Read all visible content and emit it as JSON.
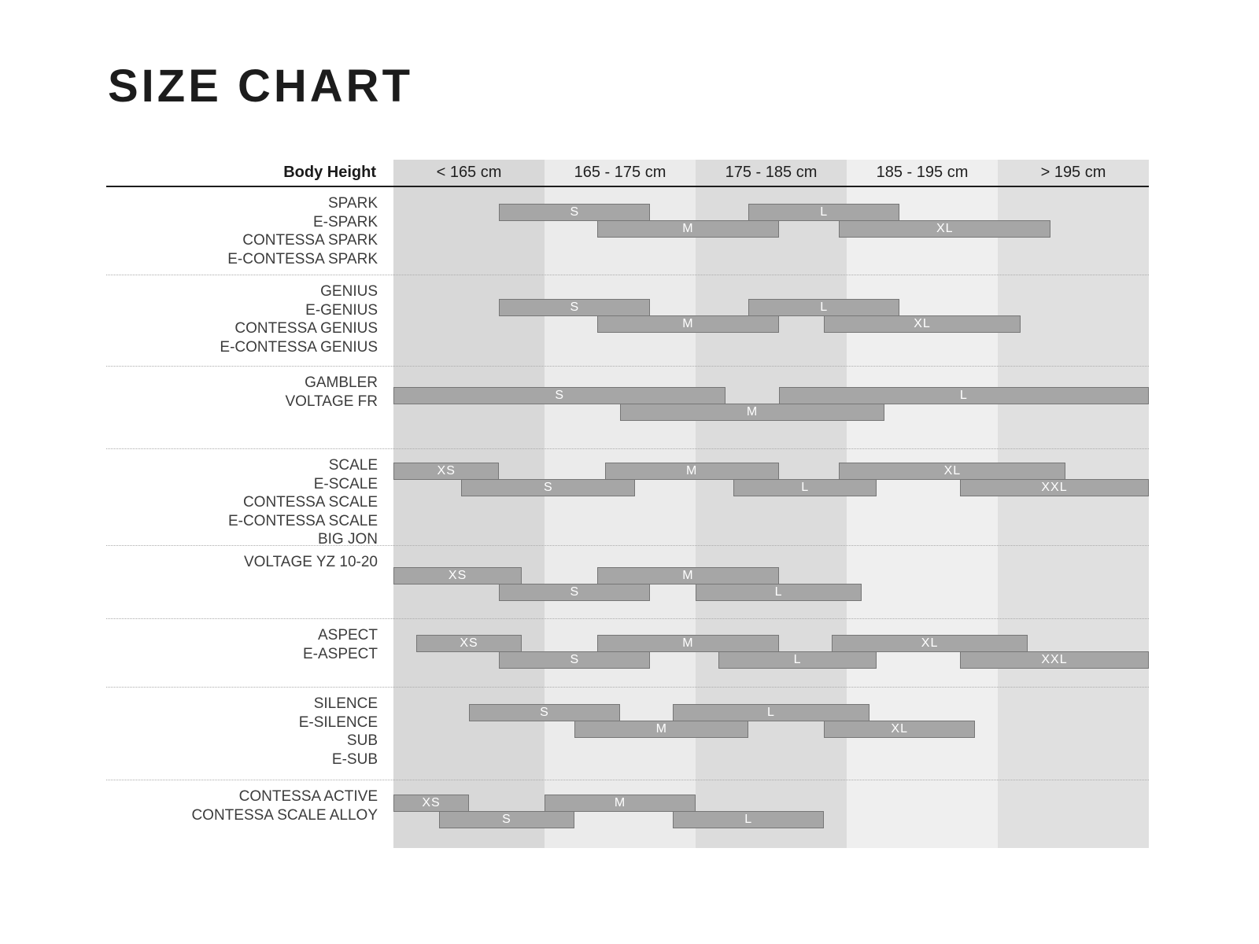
{
  "title": "SIZE CHART",
  "axis": {
    "label": "Body Height",
    "columns": [
      "< 165 cm",
      "165 - 175 cm",
      "175 - 185 cm",
      "185 - 195 cm",
      "> 195 cm"
    ]
  },
  "colors": {
    "page_bg": "#ffffff",
    "title_text": "#1c1c1c",
    "header_text": "#1f1f1f",
    "model_text": "#3c3c3c",
    "header_rule": "#1d1d1d",
    "separator": "#ababab",
    "column_fills": [
      "#d8d8d8",
      "#ebebeb",
      "#dcdcdc",
      "#efefef",
      "#e0e0e0"
    ],
    "bar_fill": "#a6a6a6",
    "bar_border": "#767676",
    "bar_text": "#ffffff"
  },
  "chart_data": {
    "type": "bar",
    "variant": "horizontal-size-range",
    "title": "SIZE CHART",
    "xlabel": "Body Height",
    "x_tick_labels": [
      "< 165 cm",
      "165 - 175 cm",
      "175 - 185 cm",
      "185 - 195 cm",
      "> 195 cm"
    ],
    "x_range_cm": [
      155,
      205
    ],
    "grid": "alternating-column-bands",
    "legend_position": "none",
    "groups": [
      {
        "models": [
          "SPARK",
          "E-SPARK",
          "CONTESSA SPARK",
          "E-CONTESSA SPARK"
        ],
        "sizes": [
          {
            "label": "S",
            "from_cm": 162,
            "to_cm": 172,
            "row": 0
          },
          {
            "label": "M",
            "from_cm": 168.5,
            "to_cm": 180.5,
            "row": 1
          },
          {
            "label": "L",
            "from_cm": 178.5,
            "to_cm": 188.5,
            "row": 0
          },
          {
            "label": "XL",
            "from_cm": 184.5,
            "to_cm": 198.5,
            "row": 1
          }
        ]
      },
      {
        "models": [
          "GENIUS",
          "E-GENIUS",
          "CONTESSA GENIUS",
          "E-CONTESSA GENIUS"
        ],
        "sizes": [
          {
            "label": "S",
            "from_cm": 162,
            "to_cm": 172,
            "row": 0
          },
          {
            "label": "M",
            "from_cm": 168.5,
            "to_cm": 180.5,
            "row": 1
          },
          {
            "label": "L",
            "from_cm": 178.5,
            "to_cm": 188.5,
            "row": 0
          },
          {
            "label": "XL",
            "from_cm": 183.5,
            "to_cm": 196.5,
            "row": 1
          }
        ]
      },
      {
        "models": [
          "GAMBLER",
          "VOLTAGE FR"
        ],
        "sizes": [
          {
            "label": "S",
            "from_cm": 155,
            "to_cm": 177,
            "row": 0
          },
          {
            "label": "M",
            "from_cm": 170,
            "to_cm": 187.5,
            "row": 1
          },
          {
            "label": "L",
            "from_cm": 180.5,
            "to_cm": 205,
            "row": 0
          }
        ]
      },
      {
        "models": [
          "SCALE",
          "E-SCALE",
          "CONTESSA SCALE",
          "E-CONTESSA SCALE",
          "BIG JON"
        ],
        "sizes": [
          {
            "label": "XS",
            "from_cm": 155,
            "to_cm": 162,
            "row": 0
          },
          {
            "label": "S",
            "from_cm": 159.5,
            "to_cm": 171,
            "row": 1
          },
          {
            "label": "M",
            "from_cm": 169,
            "to_cm": 180.5,
            "row": 0
          },
          {
            "label": "L",
            "from_cm": 177.5,
            "to_cm": 187,
            "row": 1
          },
          {
            "label": "XL",
            "from_cm": 184.5,
            "to_cm": 199.5,
            "row": 0
          },
          {
            "label": "XXL",
            "from_cm": 192.5,
            "to_cm": 205,
            "row": 1
          }
        ]
      },
      {
        "models": [
          "VOLTAGE YZ 10-20"
        ],
        "sizes": [
          {
            "label": "XS",
            "from_cm": 155,
            "to_cm": 163.5,
            "row": 0
          },
          {
            "label": "S",
            "from_cm": 162,
            "to_cm": 172,
            "row": 1
          },
          {
            "label": "M",
            "from_cm": 168.5,
            "to_cm": 180.5,
            "row": 0
          },
          {
            "label": "L",
            "from_cm": 175,
            "to_cm": 186,
            "row": 1
          }
        ]
      },
      {
        "models": [
          "ASPECT",
          "E-ASPECT"
        ],
        "sizes": [
          {
            "label": "XS",
            "from_cm": 156.5,
            "to_cm": 163.5,
            "row": 0
          },
          {
            "label": "S",
            "from_cm": 162,
            "to_cm": 172,
            "row": 1
          },
          {
            "label": "M",
            "from_cm": 168.5,
            "to_cm": 180.5,
            "row": 0
          },
          {
            "label": "L",
            "from_cm": 176.5,
            "to_cm": 187,
            "row": 1
          },
          {
            "label": "XL",
            "from_cm": 184,
            "to_cm": 197,
            "row": 0
          },
          {
            "label": "XXL",
            "from_cm": 192.5,
            "to_cm": 205,
            "row": 1
          }
        ]
      },
      {
        "models": [
          "SILENCE",
          "E-SILENCE",
          "SUB",
          "E-SUB"
        ],
        "sizes": [
          {
            "label": "S",
            "from_cm": 160,
            "to_cm": 170,
            "row": 0
          },
          {
            "label": "M",
            "from_cm": 167,
            "to_cm": 178.5,
            "row": 1
          },
          {
            "label": "L",
            "from_cm": 173.5,
            "to_cm": 186.5,
            "row": 0
          },
          {
            "label": "XL",
            "from_cm": 183.5,
            "to_cm": 193.5,
            "row": 1
          }
        ]
      },
      {
        "models": [
          "CONTESSA ACTIVE",
          "CONTESSA SCALE ALLOY"
        ],
        "sizes": [
          {
            "label": "XS",
            "from_cm": 155,
            "to_cm": 160,
            "row": 0
          },
          {
            "label": "S",
            "from_cm": 158,
            "to_cm": 167,
            "row": 1
          },
          {
            "label": "M",
            "from_cm": 165,
            "to_cm": 175,
            "row": 0
          },
          {
            "label": "L",
            "from_cm": 173.5,
            "to_cm": 183.5,
            "row": 1
          }
        ]
      }
    ]
  }
}
